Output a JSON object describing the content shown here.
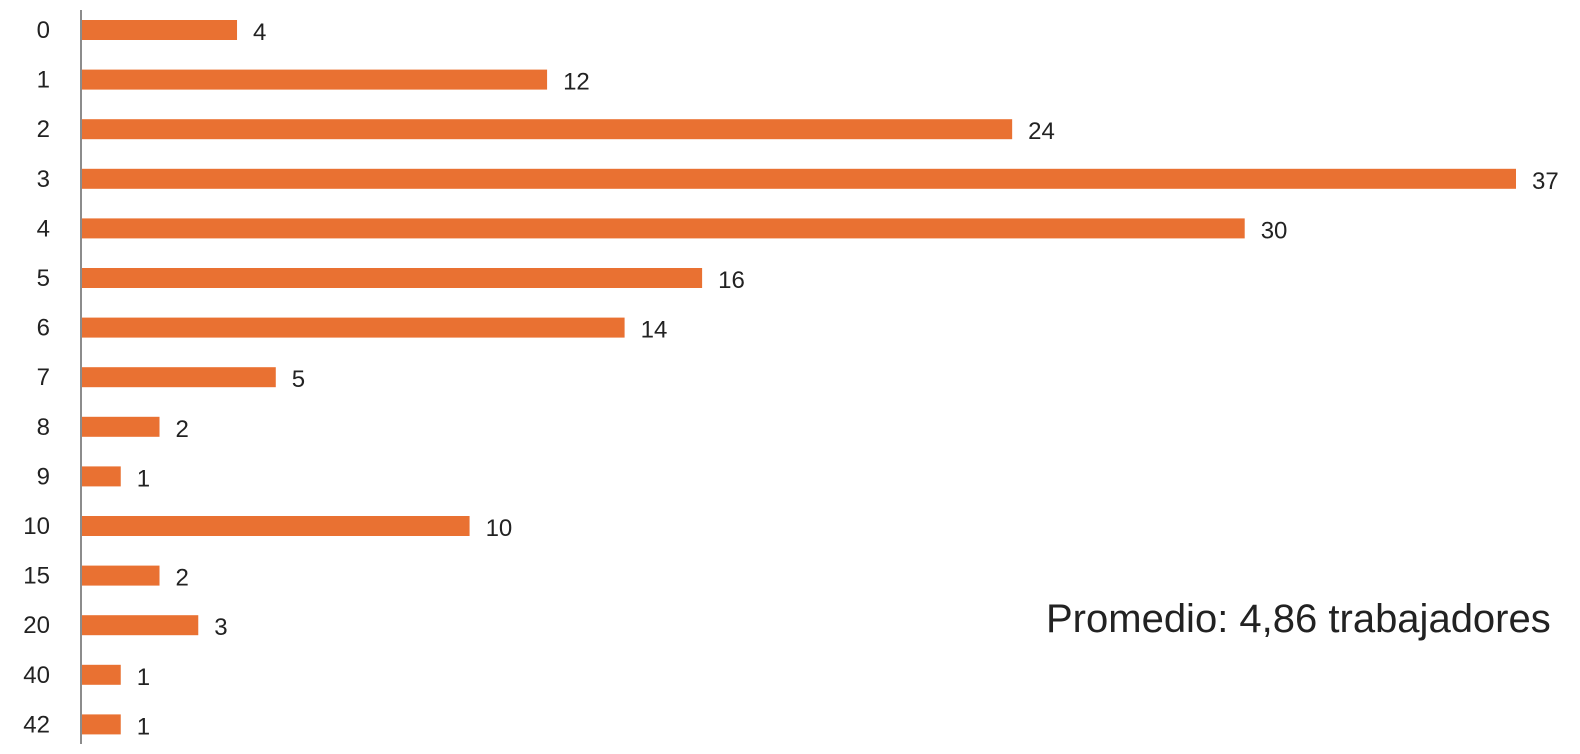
{
  "chart_data": {
    "type": "bar",
    "orientation": "horizontal",
    "categories": [
      "0",
      "1",
      "2",
      "3",
      "4",
      "5",
      "6",
      "7",
      "8",
      "9",
      "10",
      "15",
      "20",
      "40",
      "42"
    ],
    "values": [
      4,
      12,
      24,
      37,
      30,
      16,
      14,
      5,
      2,
      1,
      10,
      2,
      3,
      1,
      1
    ],
    "value_labels": [
      "4",
      "12",
      "24",
      "37",
      "30",
      "16",
      "14",
      "5",
      "2",
      "1",
      "10",
      "2",
      "3",
      "1",
      "1"
    ],
    "xlim": [
      0,
      37
    ],
    "grid": false,
    "legend": "none",
    "annotation": "Promedio: 4,86 trabajadores",
    "colors": {
      "bar": "#E97132",
      "axis": "#8C8C8C",
      "text": "#222222"
    }
  }
}
